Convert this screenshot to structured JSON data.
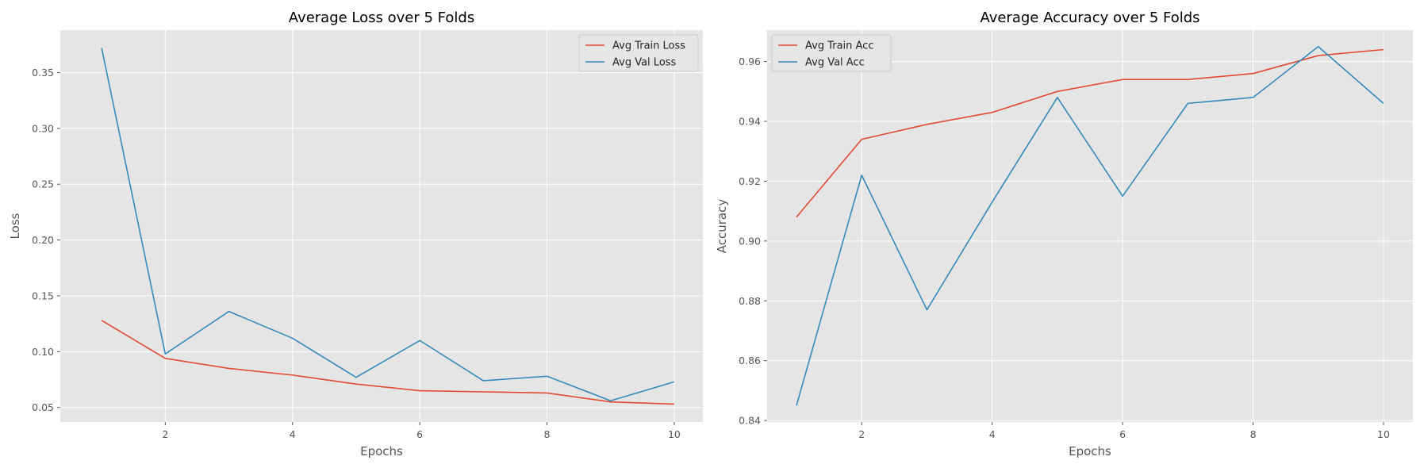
{
  "chart_data": [
    {
      "type": "line",
      "title": "Average Loss over 5 Folds",
      "xlabel": "Epochs",
      "ylabel": "Loss",
      "xlim": [
        0.35,
        10.45
      ],
      "ylim": [
        0.037,
        0.388
      ],
      "xticks": [
        2,
        4,
        6,
        8,
        10
      ],
      "yticks": [
        0.05,
        0.1,
        0.15,
        0.2,
        0.25,
        0.3,
        0.35
      ],
      "ytick_labels": [
        "0.05",
        "0.10",
        "0.15",
        "0.20",
        "0.25",
        "0.30",
        "0.35"
      ],
      "grid": true,
      "legend": "top-right",
      "x": [
        1,
        2,
        3,
        4,
        5,
        6,
        7,
        8,
        9,
        10
      ],
      "series": [
        {
          "name": "Avg Train Loss",
          "color": "#E24A33",
          "values": [
            0.128,
            0.094,
            0.085,
            0.079,
            0.071,
            0.065,
            0.064,
            0.063,
            0.055,
            0.053
          ]
        },
        {
          "name": "Avg Val Loss",
          "color": "#348ABD",
          "values": [
            0.372,
            0.098,
            0.136,
            0.112,
            0.077,
            0.11,
            0.074,
            0.078,
            0.056,
            0.073
          ]
        }
      ]
    },
    {
      "type": "line",
      "title": "Average Accuracy over 5 Folds",
      "xlabel": "Epochs",
      "ylabel": "Accuracy",
      "xlim": [
        0.55,
        10.45
      ],
      "ylim": [
        0.8395,
        0.9705
      ],
      "xticks": [
        2,
        4,
        6,
        8,
        10
      ],
      "yticks": [
        0.84,
        0.86,
        0.88,
        0.9,
        0.92,
        0.94,
        0.96
      ],
      "ytick_labels": [
        "0.84",
        "0.86",
        "0.88",
        "0.90",
        "0.92",
        "0.94",
        "0.96"
      ],
      "grid": true,
      "legend": "top-left",
      "x": [
        1,
        2,
        3,
        4,
        5,
        6,
        7,
        8,
        9,
        10
      ],
      "series": [
        {
          "name": "Avg Train Acc",
          "color": "#E24A33",
          "values": [
            0.908,
            0.934,
            0.939,
            0.943,
            0.95,
            0.954,
            0.954,
            0.956,
            0.962,
            0.964
          ]
        },
        {
          "name": "Avg Val Acc",
          "color": "#348ABD",
          "values": [
            0.845,
            0.922,
            0.877,
            0.913,
            0.948,
            0.915,
            0.946,
            0.948,
            0.965,
            0.946
          ]
        }
      ]
    }
  ]
}
